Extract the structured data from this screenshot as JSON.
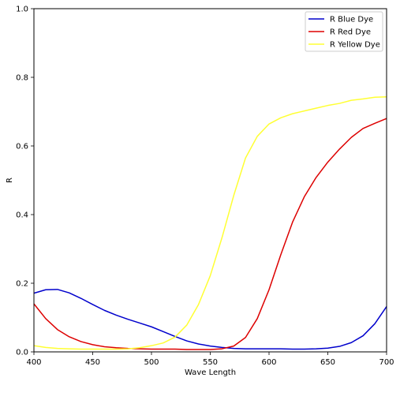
{
  "chart_data": {
    "type": "line",
    "title": "",
    "xlabel": "Wave Length",
    "ylabel": "R",
    "xlim": [
      400,
      700
    ],
    "ylim": [
      0,
      1
    ],
    "x_ticks": [
      400,
      450,
      500,
      550,
      600,
      650,
      700
    ],
    "y_ticks": [
      0.0,
      0.2,
      0.4,
      0.6,
      0.8,
      1.0
    ],
    "y_tick_labels": [
      "0.0",
      "0.2",
      "0.4",
      "0.6",
      "0.8",
      "1.0"
    ],
    "grid": false,
    "legend_position": "top-right",
    "x": [
      400,
      410,
      420,
      430,
      440,
      450,
      460,
      470,
      480,
      490,
      500,
      510,
      520,
      530,
      540,
      550,
      560,
      570,
      580,
      590,
      600,
      610,
      620,
      630,
      640,
      650,
      660,
      670,
      680,
      690,
      700
    ],
    "series": [
      {
        "name": "R Blue Dye",
        "color": "#0000cc",
        "values": [
          0.171,
          0.181,
          0.182,
          0.172,
          0.156,
          0.138,
          0.121,
          0.107,
          0.095,
          0.084,
          0.073,
          0.059,
          0.045,
          0.032,
          0.023,
          0.017,
          0.013,
          0.01,
          0.009,
          0.009,
          0.009,
          0.009,
          0.008,
          0.008,
          0.009,
          0.011,
          0.016,
          0.027,
          0.047,
          0.082,
          0.132
        ]
      },
      {
        "name": "R Red Dye",
        "color": "#dd0000",
        "values": [
          0.14,
          0.097,
          0.065,
          0.044,
          0.03,
          0.021,
          0.015,
          0.012,
          0.01,
          0.009,
          0.008,
          0.008,
          0.008,
          0.007,
          0.007,
          0.007,
          0.009,
          0.017,
          0.042,
          0.097,
          0.181,
          0.283,
          0.378,
          0.452,
          0.508,
          0.553,
          0.591,
          0.625,
          0.651,
          0.666,
          0.68
        ]
      },
      {
        "name": "R Yellow Dye",
        "color": "#ffff33",
        "values": [
          0.018,
          0.013,
          0.01,
          0.009,
          0.008,
          0.008,
          0.008,
          0.008,
          0.009,
          0.012,
          0.018,
          0.026,
          0.043,
          0.078,
          0.138,
          0.222,
          0.333,
          0.456,
          0.565,
          0.628,
          0.664,
          0.682,
          0.694,
          0.702,
          0.71,
          0.718,
          0.724,
          0.733,
          0.737,
          0.742,
          0.743
        ]
      }
    ]
  }
}
